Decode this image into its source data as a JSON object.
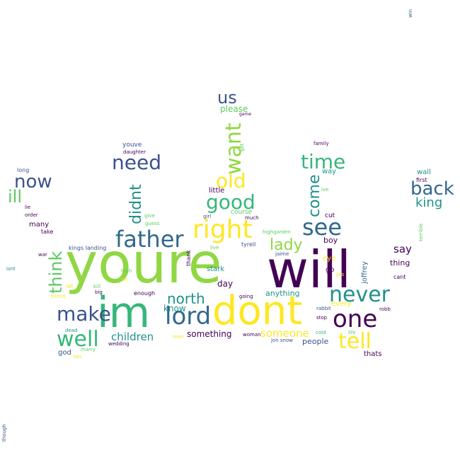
{
  "palette": {
    "purple": "#440154",
    "indigo": "#3b528b",
    "blue": "#31688e",
    "teal": "#21918c",
    "seagreen": "#35b779",
    "green": "#5ec962",
    "lime": "#90d743",
    "yellow": "#fde725"
  },
  "words": [
    {
      "text": "youre",
      "color": "lime"
    },
    {
      "text": "will",
      "color": "purple"
    },
    {
      "text": "im",
      "color": "seagreen"
    },
    {
      "text": "dont",
      "color": "yellow"
    },
    {
      "text": "right",
      "color": "yellow"
    },
    {
      "text": "want",
      "color": "lime"
    },
    {
      "text": "lord",
      "color": "blue"
    },
    {
      "text": "father",
      "color": "blue"
    },
    {
      "text": "see",
      "color": "blue"
    },
    {
      "text": "good",
      "color": "seagreen"
    },
    {
      "text": "never",
      "color": "teal"
    },
    {
      "text": "one",
      "color": "purple"
    },
    {
      "text": "well",
      "color": "seagreen"
    },
    {
      "text": "tell",
      "color": "yellow"
    },
    {
      "text": "make",
      "color": "indigo"
    },
    {
      "text": "need",
      "color": "indigo"
    },
    {
      "text": "think",
      "color": "green"
    },
    {
      "text": "didnt",
      "color": "teal"
    },
    {
      "text": "old",
      "color": "yellow"
    },
    {
      "text": "time",
      "color": "seagreen"
    },
    {
      "text": "back",
      "color": "blue"
    },
    {
      "text": "now",
      "color": "indigo"
    },
    {
      "text": "ill",
      "color": "green"
    },
    {
      "text": "us",
      "color": "indigo"
    },
    {
      "text": "come",
      "color": "teal"
    },
    {
      "text": "lady",
      "color": "lime"
    },
    {
      "text": "north",
      "color": "teal"
    },
    {
      "text": "king",
      "color": "teal"
    },
    {
      "text": "children",
      "color": "teal"
    },
    {
      "text": "someone",
      "color": "yellow"
    },
    {
      "text": "say",
      "color": "purple"
    },
    {
      "text": "please",
      "color": "green"
    },
    {
      "text": "know",
      "color": "teal"
    },
    {
      "text": "something",
      "color": "purple"
    },
    {
      "text": "stark",
      "color": "teal"
    },
    {
      "text": "day",
      "color": "purple"
    },
    {
      "text": "anything",
      "color": "teal"
    },
    {
      "text": "people",
      "color": "indigo"
    },
    {
      "text": "thing",
      "color": "purple"
    },
    {
      "text": "joffrey",
      "color": "blue"
    },
    {
      "text": "boy",
      "color": "purple"
    },
    {
      "text": "eye",
      "color": "yellow"
    },
    {
      "text": "go",
      "color": "purple"
    },
    {
      "text": "every",
      "color": "yellow"
    },
    {
      "text": "wall",
      "color": "teal"
    },
    {
      "text": "way",
      "color": "teal"
    },
    {
      "text": "little",
      "color": "purple"
    },
    {
      "text": "youve",
      "color": "indigo"
    },
    {
      "text": "many",
      "color": "purple"
    },
    {
      "text": "god",
      "color": "indigo"
    },
    {
      "text": "thats",
      "color": "purple"
    },
    {
      "text": "cut",
      "color": "purple"
    },
    {
      "text": "course",
      "color": "green"
    },
    {
      "text": "take",
      "color": "purple"
    },
    {
      "text": "kings landing",
      "color": "indigo"
    },
    {
      "text": "let",
      "color": "yellow"
    },
    {
      "text": "thank",
      "color": "purple"
    },
    {
      "text": "enough",
      "color": "purple"
    },
    {
      "text": "tyrell",
      "color": "indigo"
    },
    {
      "text": "long",
      "color": "indigo"
    },
    {
      "text": "lie",
      "color": "purple"
    },
    {
      "text": "order",
      "color": "purple"
    },
    {
      "text": "war",
      "color": "purple"
    },
    {
      "text": "isnt",
      "color": "teal"
    },
    {
      "text": "first",
      "color": "purple"
    },
    {
      "text": "ive",
      "color": "green"
    },
    {
      "text": "cant",
      "color": "purple"
    },
    {
      "text": "robb",
      "color": "purple"
    },
    {
      "text": "terrible",
      "color": "green"
    },
    {
      "text": "family",
      "color": "purple"
    },
    {
      "text": "daughter",
      "color": "purple"
    },
    {
      "text": "got",
      "color": "green"
    },
    {
      "text": "game",
      "color": "purple"
    },
    {
      "text": "much",
      "color": "purple"
    },
    {
      "text": "girl",
      "color": "indigo"
    },
    {
      "text": "give",
      "color": "green"
    },
    {
      "text": "guess",
      "color": "green"
    },
    {
      "text": "highgarden",
      "color": "green"
    },
    {
      "text": "live",
      "color": "green"
    },
    {
      "text": "jaime",
      "color": "indigo"
    },
    {
      "text": "high",
      "color": "green"
    },
    {
      "text": "oh",
      "color": "yellow"
    },
    {
      "text": "big",
      "color": "purple"
    },
    {
      "text": "kill",
      "color": "green"
    },
    {
      "text": "friend",
      "color": "yellow"
    },
    {
      "text": "going",
      "color": "purple"
    },
    {
      "text": "rabbit",
      "color": "indigo"
    },
    {
      "text": "stop",
      "color": "purple"
    },
    {
      "text": "yes",
      "color": "yellow"
    },
    {
      "text": "life",
      "color": "green"
    },
    {
      "text": "dead",
      "color": "teal"
    },
    {
      "text": "marry",
      "color": "green"
    },
    {
      "text": "hes",
      "color": "yellow"
    },
    {
      "text": "wedding",
      "color": "purple"
    },
    {
      "text": "men",
      "color": "yellow"
    },
    {
      "text": "woman",
      "color": "purple"
    },
    {
      "text": "jon snow",
      "color": "indigo"
    },
    {
      "text": "cold",
      "color": "seagreen"
    },
    {
      "text": "win",
      "color": "blue"
    },
    {
      "text": "though",
      "color": "indigo"
    }
  ]
}
